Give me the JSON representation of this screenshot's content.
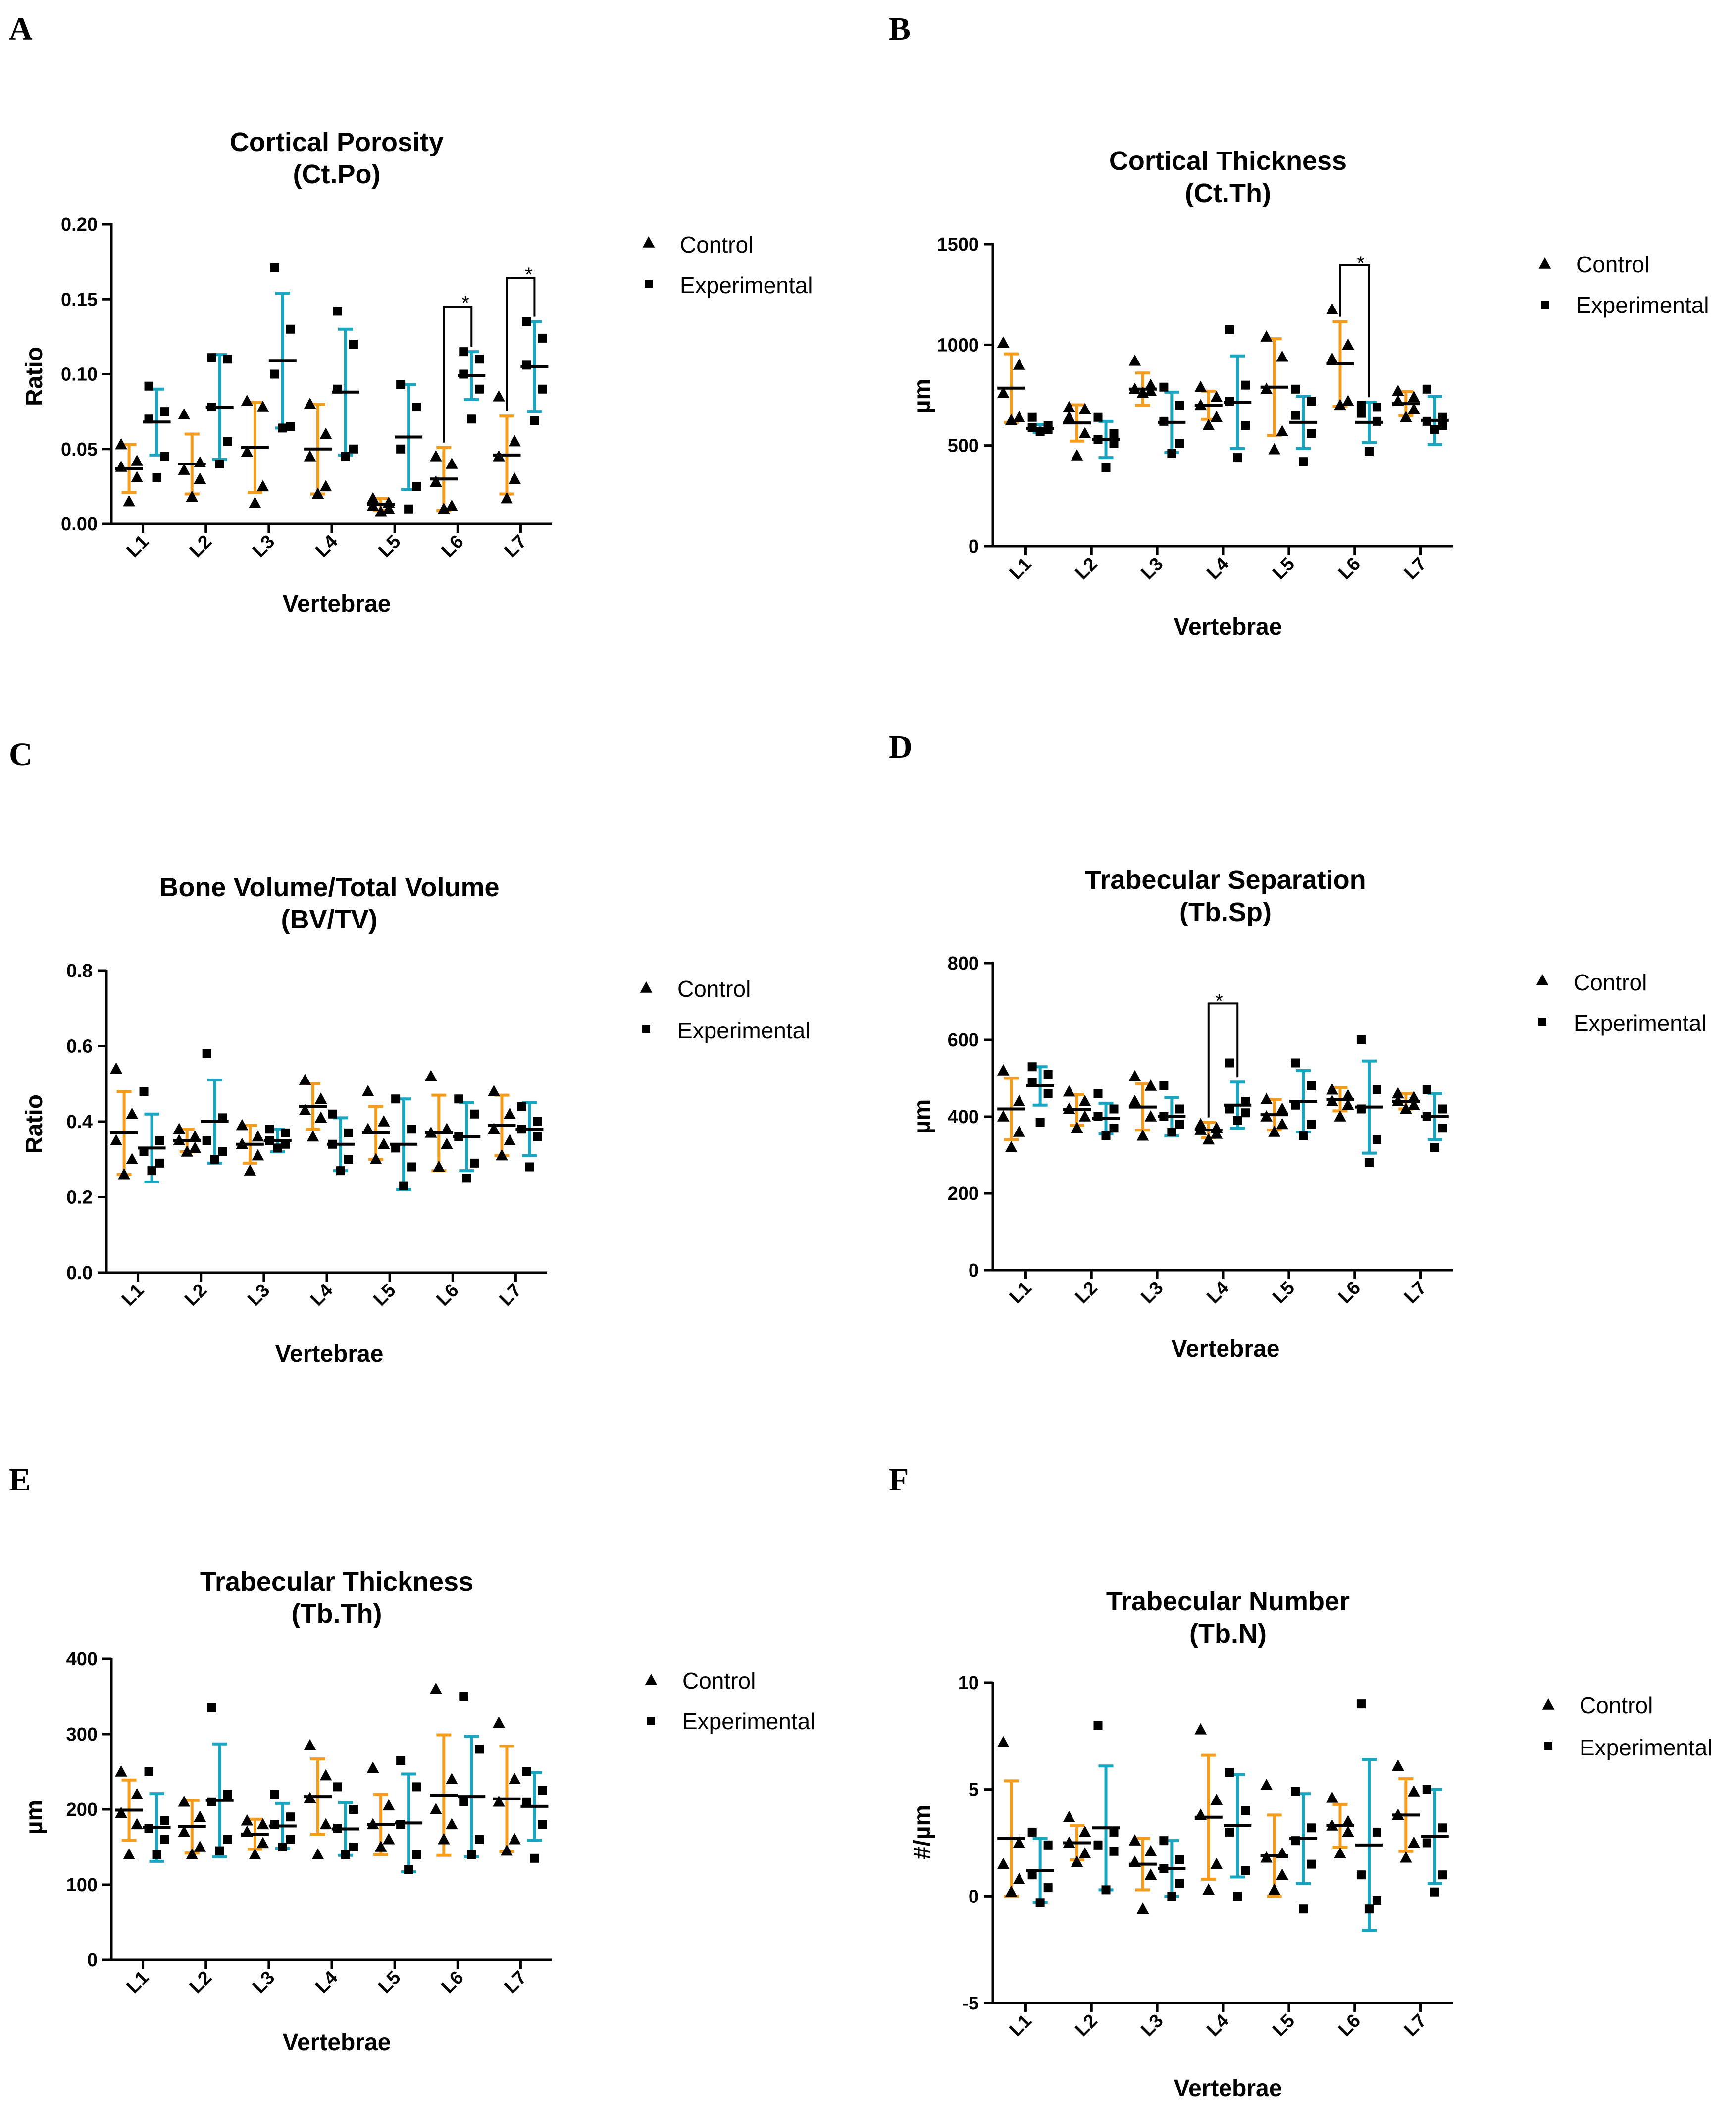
{
  "colors": {
    "control": "#F39C1E",
    "experimental": "#1AA6C0",
    "point": "#000000",
    "axis": "#000000"
  },
  "legend": {
    "control": "Control",
    "experimental": "Experimental"
  },
  "chart_data": [
    {
      "panel": "A",
      "type": "scatter",
      "title": "Cortical Porosity",
      "subtitle": "(Ct.Po)",
      "xlabel": "Vertebrae",
      "ylabel": "Ratio",
      "categories": [
        "L1",
        "L2",
        "L3",
        "L4",
        "L5",
        "L6",
        "L7"
      ],
      "ylim": [
        0,
        0.2
      ],
      "yticks": [
        0,
        0.05,
        0.1,
        0.15,
        0.2
      ],
      "ytick_labels": [
        "0.00",
        "0.05",
        "0.10",
        "0.15",
        "0.20"
      ],
      "series": [
        {
          "name": "Control",
          "mean": [
            0.037,
            0.04,
            0.051,
            0.05,
            0.013,
            0.03,
            0.046
          ],
          "sd": [
            0.016,
            0.02,
            0.03,
            0.03,
            0.004,
            0.021,
            0.026
          ],
          "points": [
            [
              0.053,
              0.042,
              0.038,
              0.031,
              0.015
            ],
            [
              0.073,
              0.041,
              0.036,
              0.03,
              0.018
            ],
            [
              0.082,
              0.078,
              0.048,
              0.025,
              0.014
            ],
            [
              0.08,
              0.06,
              0.045,
              0.025,
              0.02
            ],
            [
              0.017,
              0.014,
              0.012,
              0.01,
              0.008
            ],
            [
              0.045,
              0.04,
              0.028,
              0.012,
              0.01
            ],
            [
              0.085,
              0.055,
              0.045,
              0.03,
              0.017
            ]
          ]
        },
        {
          "name": "Experimental",
          "mean": [
            0.068,
            0.078,
            0.109,
            0.088,
            0.058,
            0.099,
            0.105
          ],
          "sd": [
            0.022,
            0.035,
            0.045,
            0.042,
            0.035,
            0.016,
            0.03
          ],
          "points": [
            [
              0.092,
              0.075,
              0.07,
              0.045,
              0.031
            ],
            [
              0.111,
              0.11,
              0.078,
              0.055,
              0.04
            ],
            [
              0.171,
              0.13,
              0.1,
              0.065,
              0.064
            ],
            [
              0.142,
              0.12,
              0.09,
              0.05,
              0.045
            ],
            [
              0.093,
              0.078,
              0.05,
              0.025,
              0.01
            ],
            [
              0.115,
              0.11,
              0.1,
              0.09,
              0.07
            ],
            [
              0.135,
              0.124,
              0.106,
              0.09,
              0.069
            ]
          ]
        }
      ],
      "significance": [
        {
          "category": "L6",
          "label": "*"
        },
        {
          "category": "L7",
          "label": "*"
        }
      ]
    },
    {
      "panel": "B",
      "type": "scatter",
      "title": "Cortical Thickness",
      "subtitle": "(Ct.Th)",
      "xlabel": "Vertebrae",
      "ylabel": "µm",
      "categories": [
        "L1",
        "L2",
        "L3",
        "L4",
        "L5",
        "L6",
        "L7"
      ],
      "ylim": [
        0,
        1500
      ],
      "yticks": [
        0,
        500,
        1000,
        1500
      ],
      "ytick_labels": [
        "0",
        "500",
        "1000",
        "1500"
      ],
      "series": [
        {
          "name": "Control",
          "mean": [
            785,
            612,
            780,
            700,
            790,
            905,
            708
          ],
          "sd": [
            170,
            90,
            80,
            70,
            240,
            210,
            60
          ],
          "points": [
            [
              1010,
              900,
              760,
              640,
              625
            ],
            [
              690,
              680,
              640,
              560,
              450
            ],
            [
              920,
              800,
              780,
              770,
              760
            ],
            [
              790,
              740,
              700,
              640,
              600
            ],
            [
              1040,
              940,
              780,
              570,
              480
            ],
            [
              1175,
              1000,
              930,
              720,
              700
            ],
            [
              770,
              740,
              720,
              680,
              640
            ]
          ]
        },
        {
          "name": "Experimental",
          "mean": [
            585,
            530,
            615,
            715,
            615,
            615,
            625
          ],
          "sd": [
            20,
            90,
            150,
            230,
            130,
            100,
            120
          ],
          "points": [
            [
              640,
              600,
              590,
              580,
              570
            ],
            [
              640,
              560,
              530,
              510,
              390
            ],
            [
              790,
              700,
              620,
              510,
              460
            ],
            [
              1075,
              800,
              720,
              600,
              440
            ],
            [
              780,
              720,
              650,
              560,
              420
            ],
            [
              700,
              690,
              660,
              620,
              470
            ],
            [
              780,
              640,
              620,
              600,
              580
            ]
          ]
        }
      ],
      "significance": [
        {
          "category": "L6",
          "label": "*"
        }
      ]
    },
    {
      "panel": "C",
      "type": "scatter",
      "title": "Bone Volume/Total Volume",
      "subtitle": "(BV/TV)",
      "xlabel": "Vertebrae",
      "ylabel": "Ratio",
      "categories": [
        "L1",
        "L2",
        "L3",
        "L4",
        "L5",
        "L6",
        "L7"
      ],
      "ylim": [
        0,
        0.8
      ],
      "yticks": [
        0,
        0.2,
        0.4,
        0.6,
        0.8
      ],
      "ytick_labels": [
        "0.0",
        "0.2",
        "0.4",
        "0.6",
        "0.8"
      ],
      "series": [
        {
          "name": "Control",
          "mean": [
            0.37,
            0.35,
            0.34,
            0.44,
            0.37,
            0.37,
            0.39
          ],
          "sd": [
            0.11,
            0.03,
            0.05,
            0.06,
            0.07,
            0.1,
            0.08
          ],
          "points": [
            [
              0.54,
              0.42,
              0.35,
              0.3,
              0.26
            ],
            [
              0.38,
              0.36,
              0.35,
              0.33,
              0.32
            ],
            [
              0.39,
              0.36,
              0.34,
              0.31,
              0.27
            ],
            [
              0.51,
              0.46,
              0.43,
              0.41,
              0.36
            ],
            [
              0.48,
              0.4,
              0.38,
              0.34,
              0.3
            ],
            [
              0.52,
              0.38,
              0.37,
              0.34,
              0.28
            ],
            [
              0.48,
              0.42,
              0.38,
              0.35,
              0.31
            ]
          ]
        },
        {
          "name": "Experimental",
          "mean": [
            0.33,
            0.4,
            0.35,
            0.34,
            0.34,
            0.36,
            0.38
          ],
          "sd": [
            0.09,
            0.11,
            0.03,
            0.07,
            0.12,
            0.09,
            0.07
          ],
          "points": [
            [
              0.48,
              0.35,
              0.32,
              0.29,
              0.27
            ],
            [
              0.58,
              0.41,
              0.35,
              0.32,
              0.3
            ],
            [
              0.38,
              0.37,
              0.35,
              0.34,
              0.33
            ],
            [
              0.42,
              0.37,
              0.34,
              0.3,
              0.27
            ],
            [
              0.46,
              0.38,
              0.33,
              0.28,
              0.23
            ],
            [
              0.46,
              0.42,
              0.36,
              0.29,
              0.25
            ],
            [
              0.44,
              0.4,
              0.38,
              0.36,
              0.28
            ]
          ]
        }
      ],
      "significance": []
    },
    {
      "panel": "D",
      "type": "scatter",
      "title": "Trabecular Separation",
      "subtitle": "(Tb.Sp)",
      "xlabel": "Vertebrae",
      "ylabel": "µm",
      "categories": [
        "L1",
        "L2",
        "L3",
        "L4",
        "L5",
        "L6",
        "L7"
      ],
      "ylim": [
        0,
        800
      ],
      "yticks": [
        0,
        200,
        400,
        600,
        800
      ],
      "ytick_labels": [
        "0",
        "200",
        "400",
        "600",
        "800"
      ],
      "series": [
        {
          "name": "Control",
          "mean": [
            420,
            418,
            425,
            365,
            405,
            445,
            440
          ],
          "sd": [
            80,
            40,
            60,
            20,
            40,
            30,
            20
          ],
          "points": [
            [
              520,
              440,
              400,
              360,
              320
            ],
            [
              465,
              440,
              420,
              400,
              370
            ],
            [
              505,
              480,
              440,
              400,
              350
            ],
            [
              380,
              370,
              365,
              355,
              340
            ],
            [
              445,
              420,
              400,
              380,
              360
            ],
            [
              470,
              455,
              440,
              430,
              400
            ],
            [
              460,
              450,
              440,
              430,
              420
            ]
          ]
        },
        {
          "name": "Experimental",
          "mean": [
            480,
            395,
            400,
            430,
            440,
            425,
            400
          ],
          "sd": [
            50,
            40,
            50,
            60,
            80,
            120,
            60
          ],
          "points": [
            [
              530,
              510,
              490,
              460,
              385
            ],
            [
              460,
              420,
              400,
              370,
              350
            ],
            [
              480,
              420,
              400,
              380,
              360
            ],
            [
              540,
              440,
              420,
              410,
              390
            ],
            [
              540,
              480,
              430,
              380,
              350
            ],
            [
              600,
              470,
              420,
              340,
              280
            ],
            [
              470,
              420,
              400,
              370,
              320
            ]
          ]
        }
      ],
      "significance": [
        {
          "category": "L4",
          "label": "*"
        }
      ]
    },
    {
      "panel": "E",
      "type": "scatter",
      "title": "Trabecular Thickness",
      "subtitle": "(Tb.Th)",
      "xlabel": "Vertebrae",
      "ylabel": "µm",
      "categories": [
        "L1",
        "L2",
        "L3",
        "L4",
        "L5",
        "L6",
        "L7"
      ],
      "ylim": [
        0,
        400
      ],
      "yticks": [
        0,
        100,
        200,
        300,
        400
      ],
      "ytick_labels": [
        "0",
        "100",
        "200",
        "300",
        "400"
      ],
      "series": [
        {
          "name": "Control",
          "mean": [
            199,
            177,
            167,
            217,
            180,
            219,
            214
          ],
          "sd": [
            40,
            35,
            20,
            50,
            40,
            80,
            70
          ],
          "points": [
            [
              250,
              220,
              195,
              180,
              140
            ],
            [
              210,
              190,
              170,
              150,
              140
            ],
            [
              185,
              180,
              170,
              155,
              140
            ],
            [
              285,
              245,
              215,
              180,
              140
            ],
            [
              255,
              205,
              180,
              160,
              150
            ],
            [
              360,
              240,
              200,
              180,
              160
            ],
            [
              315,
              240,
              210,
              160,
              145
            ]
          ]
        },
        {
          "name": "Experimental",
          "mean": [
            176,
            212,
            178,
            174,
            182,
            217,
            204
          ],
          "sd": [
            45,
            75,
            30,
            35,
            65,
            80,
            45
          ],
          "points": [
            [
              250,
              185,
              175,
              160,
              140
            ],
            [
              335,
              220,
              210,
              160,
              145
            ],
            [
              220,
              190,
              180,
              160,
              150
            ],
            [
              230,
              200,
              175,
              150,
              140
            ],
            [
              265,
              230,
              180,
              140,
              120
            ],
            [
              350,
              280,
              210,
              160,
              140
            ],
            [
              250,
              225,
              210,
              180,
              135
            ]
          ]
        }
      ],
      "significance": []
    },
    {
      "panel": "F",
      "type": "scatter",
      "title": "Trabecular Number",
      "subtitle": "(Tb.N)",
      "xlabel": "Vertebrae",
      "ylabel": "#/µm",
      "categories": [
        "L1",
        "L2",
        "L3",
        "L4",
        "L5",
        "L6",
        "L7"
      ],
      "ylim": [
        -5,
        10
      ],
      "yticks": [
        -5,
        0,
        5,
        10
      ],
      "ytick_labels": [
        "-5",
        "0",
        "5",
        "10"
      ],
      "series": [
        {
          "name": "Control",
          "mean": [
            2.7,
            2.5,
            1.5,
            3.7,
            1.9,
            3.3,
            3.8
          ],
          "sd": [
            2.7,
            0.8,
            1.2,
            2.9,
            1.9,
            1.0,
            1.7
          ],
          "points": [
            [
              7.2,
              2.5,
              1.5,
              0.8,
              0.2
            ],
            [
              3.7,
              3.0,
              2.5,
              2.0,
              1.6
            ],
            [
              2.6,
              2.1,
              1.6,
              1.0,
              -0.6
            ],
            [
              7.8,
              4.5,
              3.8,
              1.5,
              0.3
            ],
            [
              5.2,
              2.0,
              1.8,
              1.0,
              0.3
            ],
            [
              4.6,
              3.5,
              3.3,
              3.0,
              2.0
            ],
            [
              6.1,
              4.9,
              3.8,
              2.5,
              1.8
            ]
          ]
        },
        {
          "name": "Experimental",
          "mean": [
            1.2,
            3.2,
            1.3,
            3.3,
            2.7,
            2.4,
            2.8
          ],
          "sd": [
            1.5,
            2.9,
            1.3,
            2.4,
            2.1,
            4.0,
            2.2
          ],
          "points": [
            [
              3.0,
              2.4,
              1.0,
              0.4,
              -0.3
            ],
            [
              8.0,
              3.0,
              2.4,
              2.1,
              0.3
            ],
            [
              2.6,
              1.7,
              1.3,
              0.6,
              0.0
            ],
            [
              5.8,
              4.0,
              3.0,
              1.2,
              0.0
            ],
            [
              4.9,
              3.2,
              2.6,
              1.5,
              -0.6
            ],
            [
              9.0,
              3.0,
              1.0,
              -0.2,
              -0.6
            ],
            [
              5.0,
              3.2,
              2.5,
              1.0,
              0.2
            ]
          ]
        }
      ],
      "significance": []
    }
  ]
}
